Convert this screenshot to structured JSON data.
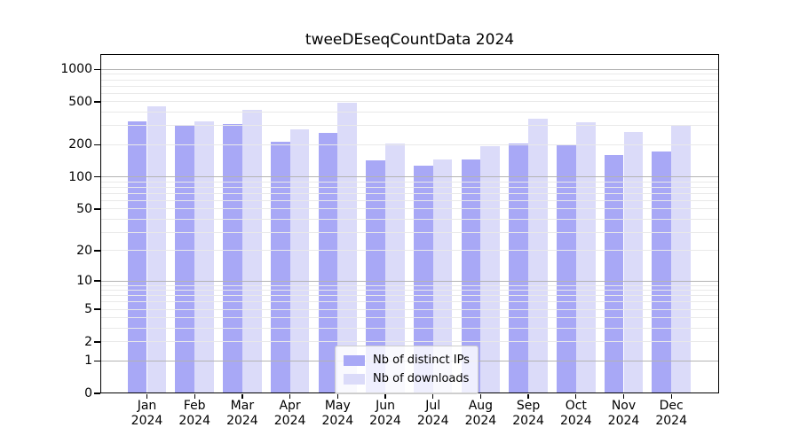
{
  "chart_data": {
    "type": "bar",
    "title": "tweeDEseqCountData 2024",
    "categories": [
      "Jan",
      "Feb",
      "Mar",
      "Apr",
      "May",
      "Jun",
      "Jul",
      "Aug",
      "Sep",
      "Oct",
      "Nov",
      "Dec"
    ],
    "year_label": "2024",
    "series": [
      {
        "name": "Nb of distinct IPs",
        "color": "#a8a8f6",
        "values": [
          332,
          301,
          313,
          211,
          258,
          144,
          127,
          145,
          206,
          197,
          160,
          171
        ]
      },
      {
        "name": "Nb of downloads",
        "color": "#dbdbf9",
        "values": [
          456,
          331,
          421,
          279,
          492,
          203,
          145,
          193,
          347,
          321,
          261,
          299
        ]
      }
    ],
    "yticks": [
      0,
      1,
      2,
      5,
      10,
      20,
      50,
      100,
      200,
      500,
      1000
    ],
    "yscale": "log10(value+1)",
    "ylim": [
      0,
      1385
    ],
    "xlabel": "",
    "ylabel": "",
    "grid": true,
    "grid_major_at": [
      1,
      10,
      100,
      1000
    ],
    "legend_position": "inside lower center"
  },
  "colors": {
    "axis": "#000000",
    "grid_major": "#b3b3b3",
    "grid_minor": "#e9e9e9",
    "legend_border": "#cccccc"
  }
}
